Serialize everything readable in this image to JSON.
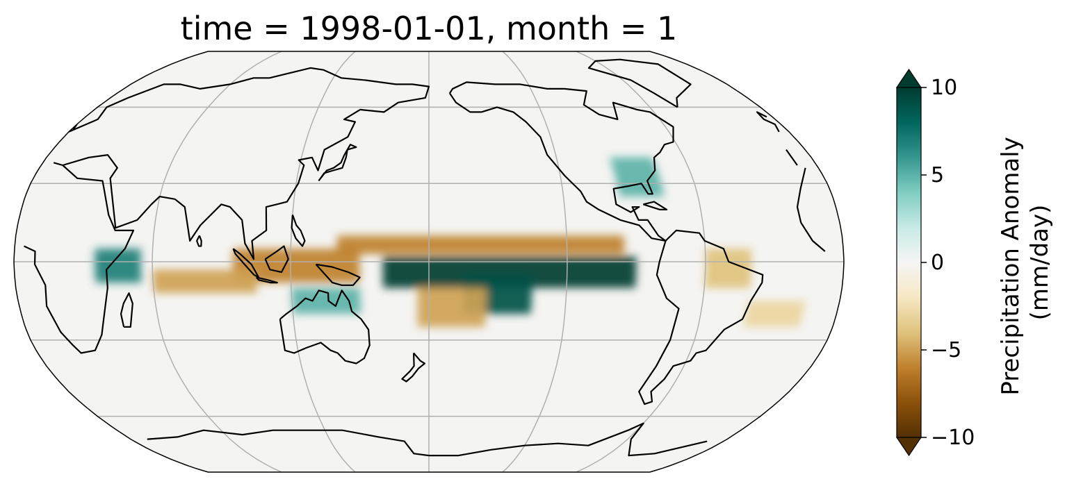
{
  "title": "time = 1998-01-01, month = 1",
  "map": {
    "projection": "Robinson",
    "central_longitude": 180,
    "gridlines": true,
    "coastlines": true,
    "colormap": "BrBG",
    "anomaly_features": [
      {
        "name": "equatorial-central-pacific-wet",
        "lon": [
          160,
          270
        ],
        "lat": [
          -10,
          2
        ],
        "value": 10
      },
      {
        "name": "south-central-pacific-wet-tongue",
        "lon": [
          195,
          225
        ],
        "lat": [
          -20,
          -5
        ],
        "value": 9
      },
      {
        "name": "north-equatorial-pacific-dry",
        "lon": [
          140,
          265
        ],
        "lat": [
          3,
          10
        ],
        "value": -6
      },
      {
        "name": "indonesia-dry",
        "lon": [
          95,
          150
        ],
        "lat": [
          -8,
          5
        ],
        "value": -6
      },
      {
        "name": "south-pacific-convergence-dry",
        "lon": [
          175,
          205
        ],
        "lat": [
          -25,
          -10
        ],
        "value": -5
      },
      {
        "name": "indian-ocean-dry",
        "lon": [
          60,
          105
        ],
        "lat": [
          -12,
          -3
        ],
        "value": -5
      },
      {
        "name": "east-africa-wet",
        "lon": [
          35,
          55
        ],
        "lat": [
          -8,
          5
        ],
        "value": 7
      },
      {
        "name": "northern-australia-wet",
        "lon": [
          120,
          150
        ],
        "lat": [
          -20,
          -10
        ],
        "value": 5
      },
      {
        "name": "gulf-coast-wet",
        "lon": [
          265,
          285
        ],
        "lat": [
          25,
          40
        ],
        "value": 5
      },
      {
        "name": "northeast-brazil-dry",
        "lon": [
          300,
          320
        ],
        "lat": [
          -10,
          5
        ],
        "value": -4
      },
      {
        "name": "south-atlantic-dry",
        "lon": [
          320,
          345
        ],
        "lat": [
          -25,
          -15
        ],
        "value": -3
      }
    ]
  },
  "colorbar": {
    "label_line1": "Precipitation Anomaly",
    "label_line2": "(mm/day)",
    "ticks": [
      "10",
      "5",
      "0",
      "−5",
      "−10"
    ],
    "tick_values": [
      10,
      5,
      0,
      -5,
      -10
    ],
    "vmin": -10,
    "vmax": 10,
    "extend": "both",
    "colors": [
      "#543005",
      "#8c510a",
      "#bf812d",
      "#dfc27d",
      "#f6e8c3",
      "#f5f5f5",
      "#c7eae5",
      "#80cdc1",
      "#35978f",
      "#01665e",
      "#003c30"
    ]
  },
  "colors": {
    "gridline": "#b0b0b0",
    "coastline": "#000000",
    "background": "#f4f4f2"
  }
}
